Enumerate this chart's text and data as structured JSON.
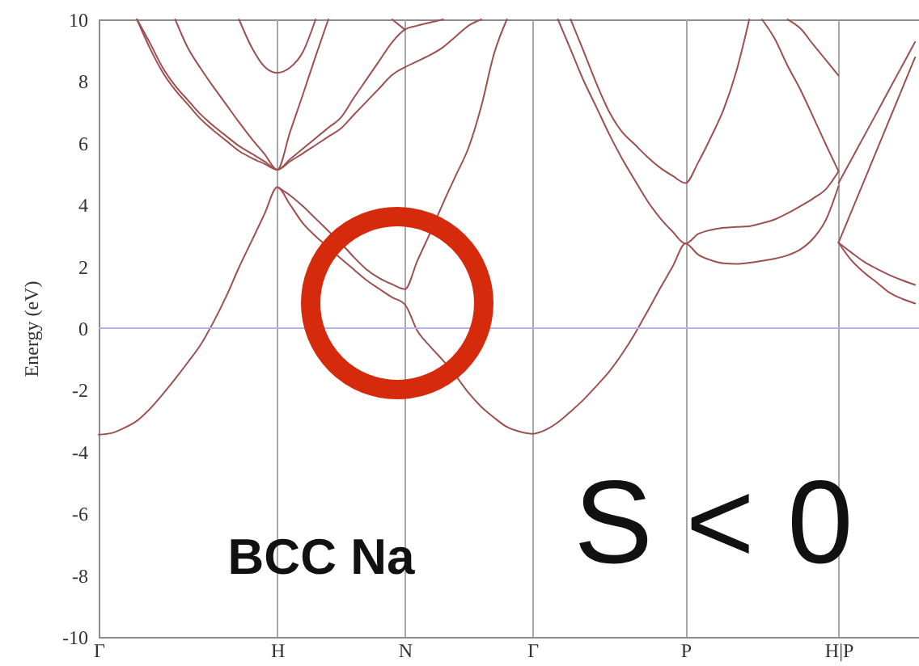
{
  "chart_data": {
    "type": "line",
    "ylabel": "Energy (eV)",
    "annotations": [
      "BCC Na",
      "S < 0"
    ],
    "categories": [
      "Γ",
      null,
      null,
      null,
      null,
      null,
      null,
      null,
      null,
      null,
      null,
      null,
      null,
      null,
      "H",
      null,
      null,
      null,
      null,
      null,
      null,
      null,
      null,
      null,
      "N",
      null,
      null,
      null,
      null,
      null,
      null,
      null,
      null,
      null,
      "Γ",
      null,
      null,
      null,
      null,
      null,
      null,
      null,
      null,
      null,
      null,
      null,
      "P",
      null,
      null,
      null,
      null,
      null,
      null,
      null,
      null,
      null,
      null,
      null,
      "H|P",
      null,
      null,
      null,
      null,
      null,
      null
    ],
    "ylim": [
      -10,
      10
    ],
    "yticks": [
      -10,
      -8,
      -6,
      -4,
      -2,
      0,
      2,
      4,
      6,
      8,
      10
    ],
    "grid": "x",
    "ref_lines": [
      {
        "axis": "y",
        "value": 0,
        "color": "#b3b3f0"
      }
    ],
    "series": [
      {
        "color": "#9e5050",
        "values": [
          -3.45,
          -3.4,
          -3.23,
          -3.0,
          -2.62,
          -2.15,
          -1.64,
          -1.1,
          -0.53,
          0.2,
          1.03,
          1.97,
          2.83,
          3.7,
          4.57,
          4.0,
          3.4,
          2.98,
          2.62,
          2.25,
          1.9,
          1.55,
          1.27,
          1.0,
          0.77,
          -0.1,
          -0.6,
          -1.05,
          -1.55,
          -2.1,
          -2.55,
          -2.9,
          -3.2,
          -3.35,
          -3.42,
          -3.3,
          -3.05,
          -2.7,
          -2.32,
          -1.88,
          -1.42,
          -0.85,
          -0.2,
          0.53,
          1.28,
          2.0,
          2.74,
          2.38,
          2.2,
          2.1,
          2.08,
          2.12,
          2.18,
          2.25,
          2.36,
          2.55,
          2.9,
          3.5,
          4.6,
          null,
          null,
          null,
          null,
          null,
          null
        ]
      },
      {
        "color": "#9e5050",
        "values": [
          null,
          null,
          null,
          null,
          null,
          null,
          null,
          null,
          null,
          null,
          null,
          null,
          null,
          null,
          4.57,
          4.3,
          3.95,
          3.55,
          3.15,
          2.75,
          2.3,
          1.9,
          1.62,
          1.42,
          1.26,
          2.2,
          3.1,
          4.05,
          4.95,
          5.85,
          7.2,
          8.9,
          10,
          null,
          null,
          null,
          10,
          9.02,
          8.03,
          7.17,
          6.3,
          5.51,
          4.81,
          4.13,
          3.57,
          3.12,
          2.74,
          3.05,
          3.18,
          3.25,
          3.28,
          3.3,
          3.4,
          3.52,
          3.72,
          3.95,
          4.2,
          4.5,
          5.08,
          null,
          null,
          null,
          null,
          null,
          null
        ]
      },
      {
        "color": "#9e5050",
        "values": [
          null,
          null,
          null,
          10,
          9.08,
          8.3,
          7.71,
          7.24,
          6.77,
          6.4,
          6.07,
          5.74,
          5.51,
          5.32,
          5.13,
          5.4,
          5.66,
          5.93,
          6.2,
          6.47,
          6.91,
          7.34,
          7.77,
          8.2,
          8.45,
          8.65,
          8.85,
          9.1,
          9.45,
          9.8,
          10,
          null,
          null,
          null,
          null,
          null,
          null,
          10,
          8.98,
          7.94,
          7.02,
          6.37,
          5.96,
          5.55,
          5.2,
          4.93,
          4.7,
          5.37,
          6.19,
          7.1,
          8.34,
          10,
          null,
          null,
          null,
          null,
          null,
          null,
          2.77,
          3.77,
          4.77,
          5.77,
          6.77,
          7.77,
          8.77
        ]
      },
      {
        "color": "#9e5050",
        "values": [
          null,
          null,
          null,
          10,
          9.25,
          8.45,
          7.85,
          7.38,
          6.92,
          6.55,
          6.22,
          5.9,
          5.65,
          5.4,
          5.13,
          5.47,
          5.81,
          6.15,
          6.49,
          6.83,
          7.46,
          8.06,
          8.66,
          9.26,
          9.67,
          9.8,
          9.9,
          10,
          null,
          null,
          null,
          null,
          null,
          null,
          null,
          null,
          null,
          null,
          null,
          null,
          null,
          null,
          null,
          null,
          null,
          null,
          null,
          null,
          null,
          null,
          null,
          null,
          null,
          null,
          10,
          9.71,
          9.19,
          8.69,
          8.18,
          null,
          null,
          null,
          null,
          null,
          null
        ]
      },
      {
        "color": "#9e5050",
        "values": [
          null,
          null,
          null,
          null,
          null,
          null,
          10,
          9.07,
          8.41,
          7.81,
          7.24,
          6.67,
          6.13,
          5.64,
          5.13,
          6.35,
          7.56,
          8.8,
          10,
          null,
          null,
          null,
          null,
          null,
          null,
          null,
          null,
          null,
          null,
          null,
          null,
          null,
          null,
          null,
          null,
          null,
          null,
          null,
          null,
          null,
          null,
          null,
          null,
          null,
          null,
          null,
          null,
          null,
          null,
          null,
          null,
          null,
          null,
          null,
          null,
          null,
          null,
          null,
          2.77,
          2.2,
          1.8,
          1.48,
          1.15,
          0.95,
          0.8
        ]
      },
      {
        "color": "#9e5050",
        "values": [
          null,
          null,
          null,
          null,
          null,
          null,
          null,
          null,
          null,
          null,
          null,
          10,
          9.09,
          8.47,
          8.27,
          8.44,
          8.94,
          10,
          null,
          null,
          null,
          null,
          null,
          null,
          null,
          null,
          null,
          null,
          null,
          null,
          null,
          null,
          null,
          null,
          null,
          null,
          null,
          null,
          null,
          null,
          null,
          null,
          null,
          null,
          null,
          null,
          null,
          null,
          null,
          null,
          null,
          null,
          10,
          9.37,
          8.5,
          7.73,
          6.85,
          5.95,
          5.08,
          null,
          null,
          null,
          null,
          null,
          null
        ]
      },
      {
        "color": "#9e5050",
        "values": [
          null,
          null,
          null,
          null,
          null,
          null,
          null,
          null,
          null,
          null,
          null,
          null,
          null,
          null,
          null,
          null,
          null,
          null,
          null,
          null,
          null,
          null,
          null,
          10,
          9.67,
          null,
          null,
          null,
          null,
          null,
          null,
          null,
          null,
          null,
          null,
          null,
          null,
          null,
          null,
          null,
          null,
          null,
          null,
          null,
          null,
          null,
          null,
          null,
          null,
          null,
          null,
          null,
          null,
          null,
          null,
          null,
          null,
          null,
          2.77,
          2.45,
          2.15,
          1.92,
          1.72,
          1.55,
          1.4
        ]
      },
      {
        "color": "#9e5050",
        "values": [
          null,
          null,
          null,
          null,
          null,
          null,
          null,
          null,
          null,
          null,
          null,
          null,
          null,
          null,
          null,
          null,
          null,
          null,
          null,
          null,
          null,
          null,
          null,
          null,
          null,
          null,
          null,
          null,
          null,
          null,
          null,
          null,
          null,
          null,
          null,
          null,
          null,
          null,
          null,
          null,
          null,
          null,
          null,
          null,
          null,
          null,
          null,
          null,
          null,
          null,
          null,
          null,
          null,
          null,
          null,
          null,
          null,
          null,
          4.7,
          5.46,
          6.22,
          6.98,
          7.75,
          8.51,
          9.27
        ]
      }
    ]
  }
}
